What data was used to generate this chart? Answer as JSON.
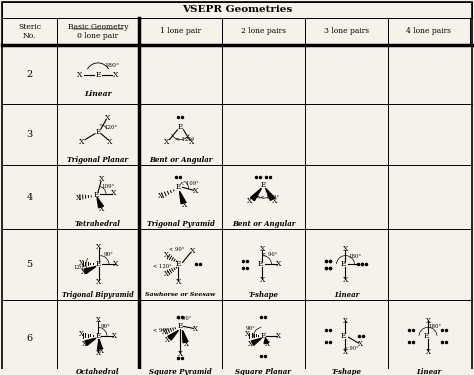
{
  "title": "VSEPR Geometries",
  "bg_color": "#f0ece0",
  "col_headers": [
    "Basic Geometry\n0 lone pair",
    "1 lone pair",
    "2 lone pairs",
    "3 lone pairs",
    "4 lone pairs"
  ],
  "row_labels": [
    "2",
    "3",
    "4",
    "5",
    "6"
  ],
  "cell_names": [
    [
      "Linear",
      "",
      "",
      "",
      ""
    ],
    [
      "Trigonal Planar",
      "Bent or Angular",
      "",
      "",
      ""
    ],
    [
      "Tetrahedral",
      "Trigonal Pyramid",
      "Bent or Angular",
      "",
      ""
    ],
    [
      "Trigonal Bipyramid",
      "Sawhorse or Seesaw",
      "T-shape",
      "Linear",
      ""
    ],
    [
      "Octahedral",
      "Square Pyramid",
      "Square Planar",
      "T-shape",
      "Linear"
    ]
  ]
}
